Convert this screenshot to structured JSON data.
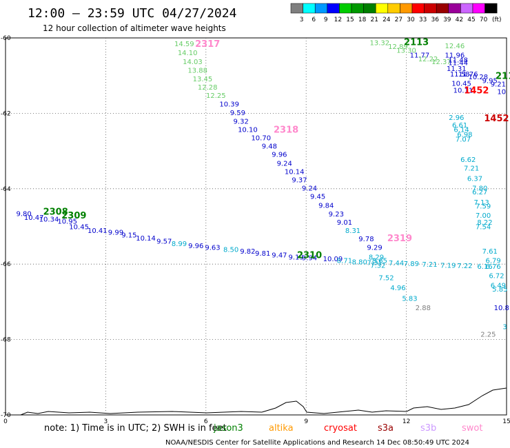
{
  "header": {
    "title": "12:00 – 23:59 UTC 04/27/2024",
    "subtitle": "12 hour collection of altimeter wave heights"
  },
  "legend": {
    "unit": "(ft)",
    "bins": [
      {
        "label": "3",
        "color": "#7f7f7f"
      },
      {
        "label": "6",
        "color": "#00ffff"
      },
      {
        "label": "9",
        "color": "#0099ff"
      },
      {
        "label": "12",
        "color": "#0000ff"
      },
      {
        "label": "15",
        "color": "#00cc00"
      },
      {
        "label": "18",
        "color": "#009900"
      },
      {
        "label": "21",
        "color": "#007f00"
      },
      {
        "label": "24",
        "color": "#ffff00"
      },
      {
        "label": "27",
        "color": "#ffcc00"
      },
      {
        "label": "30",
        "color": "#ff9900"
      },
      {
        "label": "33",
        "color": "#ff0000"
      },
      {
        "label": "36",
        "color": "#cc0000"
      },
      {
        "label": "39",
        "color": "#990000"
      },
      {
        "label": "42",
        "color": "#990099"
      },
      {
        "label": "45",
        "color": "#cc66ff"
      },
      {
        "label": "70",
        "color": "#ff00ff"
      },
      {
        "label": "",
        "color": "#000000"
      }
    ]
  },
  "footer": {
    "note": "note:  1) Time is in UTC; 2) SWH is in feet",
    "missions": [
      {
        "name": "jason3",
        "color": "#008000"
      },
      {
        "name": "altika",
        "color": "#ff9900"
      },
      {
        "name": "cryosat",
        "color": "#ff0000"
      },
      {
        "name": "s3a",
        "color": "#990000"
      },
      {
        "name": "s3b",
        "color": "#cc99ff"
      },
      {
        "name": "swot",
        "color": "#ff88cc"
      }
    ],
    "credit": "NOAA/NESDIS Center for Satellite Applications and Research    14 Dec 08:50:49 UTC 2024"
  },
  "chart_data": {
    "type": "scatter",
    "x_ticks": [
      "0",
      "3",
      "6",
      "9",
      "12",
      "15"
    ],
    "y_ticks": [
      "-60",
      "-62",
      "-64",
      "-66",
      "-68",
      "-70"
    ],
    "xlim": [
      0,
      15
    ],
    "ylim": [
      -70,
      -60
    ],
    "grid": "dotted",
    "points": [
      {
        "x": 5.35,
        "y": -60.15,
        "label": "14.59",
        "color": "#66cc66"
      },
      {
        "x": 5.45,
        "y": -60.38,
        "label": "14.10",
        "color": "#66cc66"
      },
      {
        "x": 5.6,
        "y": -60.62,
        "label": "14.03",
        "color": "#66cc66"
      },
      {
        "x": 5.75,
        "y": -60.85,
        "label": "13.88",
        "color": "#66cc66"
      },
      {
        "x": 5.9,
        "y": -61.08,
        "label": "13.45",
        "color": "#66cc66"
      },
      {
        "x": 6.05,
        "y": -61.3,
        "label": "12.28",
        "color": "#66cc66"
      },
      {
        "x": 6.3,
        "y": -61.52,
        "label": "12.25",
        "color": "#66cc66"
      },
      {
        "x": 6.7,
        "y": -61.75,
        "label": "10.39",
        "color": "#0000cc"
      },
      {
        "x": 6.95,
        "y": -61.97,
        "label": "9.59",
        "color": "#0000cc"
      },
      {
        "x": 7.05,
        "y": -62.2,
        "label": "9.32",
        "color": "#0000cc"
      },
      {
        "x": 7.25,
        "y": -62.42,
        "label": "10.10",
        "color": "#0000cc"
      },
      {
        "x": 7.65,
        "y": -62.64,
        "label": "10.70",
        "color": "#0000cc"
      },
      {
        "x": 7.9,
        "y": -62.86,
        "label": "9.48",
        "color": "#0000cc"
      },
      {
        "x": 8.2,
        "y": -63.08,
        "label": "9.96",
        "color": "#0000cc"
      },
      {
        "x": 8.35,
        "y": -63.32,
        "label": "9.24",
        "color": "#0000cc"
      },
      {
        "x": 8.65,
        "y": -63.54,
        "label": "10.14",
        "color": "#0000cc"
      },
      {
        "x": 8.8,
        "y": -63.76,
        "label": "9.37",
        "color": "#0000cc"
      },
      {
        "x": 9.1,
        "y": -63.98,
        "label": "9.24",
        "color": "#0000cc"
      },
      {
        "x": 9.35,
        "y": -64.2,
        "label": "9.45",
        "color": "#0000cc"
      },
      {
        "x": 9.6,
        "y": -64.43,
        "label": "9.84",
        "color": "#0000cc"
      },
      {
        "x": 9.9,
        "y": -64.66,
        "label": "9.23",
        "color": "#0000cc"
      },
      {
        "x": 10.15,
        "y": -64.88,
        "label": "9.01",
        "color": "#0000cc"
      },
      {
        "x": 10.4,
        "y": -65.1,
        "label": "8.31",
        "color": "#00aacc"
      },
      {
        "x": 10.8,
        "y": -65.32,
        "label": "9.78",
        "color": "#0000cc"
      },
      {
        "x": 11.05,
        "y": -65.55,
        "label": "9.29",
        "color": "#0000cc"
      },
      {
        "x": 11.1,
        "y": -65.8,
        "label": "8.29",
        "color": "#00aacc"
      },
      {
        "x": 11.2,
        "y": -65.9,
        "label": "8.65",
        "color": "#00aacc"
      },
      {
        "x": 11.15,
        "y": -66.02,
        "label": "7.32",
        "color": "#00aacc"
      },
      {
        "x": 11.4,
        "y": -66.35,
        "label": "7.52",
        "color": "#00aacc"
      },
      {
        "x": 11.75,
        "y": -66.62,
        "label": "4.96",
        "color": "#00aacc"
      },
      {
        "x": 12.1,
        "y": -66.9,
        "label": "5.83",
        "color": "#00aacc"
      },
      {
        "x": 12.5,
        "y": -67.15,
        "label": "2.88",
        "color": "#7f7f7f"
      },
      {
        "x": 0.55,
        "y": -64.65,
        "label": "9.80",
        "color": "#0000cc"
      },
      {
        "x": 0.85,
        "y": -64.75,
        "label": "10.47",
        "color": "#0000cc"
      },
      {
        "x": 1.3,
        "y": -64.8,
        "label": "10.34",
        "color": "#0000cc"
      },
      {
        "x": 1.85,
        "y": -64.85,
        "label": "10.95",
        "color": "#0000cc"
      },
      {
        "x": 2.2,
        "y": -65.0,
        "label": "10.45",
        "color": "#0000cc"
      },
      {
        "x": 2.75,
        "y": -65.1,
        "label": "10.41",
        "color": "#0000cc"
      },
      {
        "x": 3.3,
        "y": -65.15,
        "label": "9.99",
        "color": "#0000cc"
      },
      {
        "x": 3.7,
        "y": -65.22,
        "label": "9.15",
        "color": "#0000cc"
      },
      {
        "x": 4.2,
        "y": -65.3,
        "label": "10.14",
        "color": "#0000cc"
      },
      {
        "x": 4.75,
        "y": -65.38,
        "label": "9.57",
        "color": "#0000cc"
      },
      {
        "x": 5.2,
        "y": -65.45,
        "label": "8.99",
        "color": "#00aacc"
      },
      {
        "x": 5.7,
        "y": -65.5,
        "label": "9.96",
        "color": "#0000cc"
      },
      {
        "x": 6.2,
        "y": -65.55,
        "label": "9.63",
        "color": "#0000cc"
      },
      {
        "x": 6.75,
        "y": -65.6,
        "label": "8.50",
        "color": "#00aacc"
      },
      {
        "x": 7.25,
        "y": -65.65,
        "label": "9.82",
        "color": "#0000cc"
      },
      {
        "x": 7.7,
        "y": -65.7,
        "label": "9.81",
        "color": "#0000cc"
      },
      {
        "x": 8.2,
        "y": -65.75,
        "label": "9.47",
        "color": "#0000cc"
      },
      {
        "x": 8.7,
        "y": -65.8,
        "label": "9.19",
        "color": "#0000cc"
      },
      {
        "x": 9.1,
        "y": -65.82,
        "label": "9.94",
        "color": "#0000cc"
      },
      {
        "x": 9.8,
        "y": -65.85,
        "label": "10.09",
        "color": "#0000cc"
      },
      {
        "x": 10.15,
        "y": -65.9,
        "label": "8.71",
        "color": "#00aacc"
      },
      {
        "x": 10.6,
        "y": -65.93,
        "label": "8.80",
        "color": "#00aacc"
      },
      {
        "x": 11.05,
        "y": -65.95,
        "label": "7.31",
        "color": "#00aacc"
      },
      {
        "x": 11.7,
        "y": -65.96,
        "label": "7.44",
        "color": "#00aacc"
      },
      {
        "x": 12.15,
        "y": -65.98,
        "label": "7.89",
        "color": "#00aacc"
      },
      {
        "x": 12.7,
        "y": -66.0,
        "label": "7.21",
        "color": "#00aacc"
      },
      {
        "x": 13.25,
        "y": -66.02,
        "label": "7.19",
        "color": "#00aacc"
      },
      {
        "x": 13.75,
        "y": -66.03,
        "label": "7.22",
        "color": "#00aacc"
      },
      {
        "x": 14.35,
        "y": -66.05,
        "label": "6.16",
        "color": "#00aacc"
      },
      {
        "x": 13.5,
        "y": -62.1,
        "label": "2.96",
        "color": "#00aacc"
      },
      {
        "x": 13.6,
        "y": -62.3,
        "label": "6.61",
        "color": "#00aacc"
      },
      {
        "x": 13.65,
        "y": -62.42,
        "label": "6.14",
        "color": "#00aacc"
      },
      {
        "x": 13.75,
        "y": -62.55,
        "label": "6.98",
        "color": "#00aacc"
      },
      {
        "x": 13.7,
        "y": -62.68,
        "label": "7.07",
        "color": "#00aacc"
      },
      {
        "x": 13.85,
        "y": -63.22,
        "label": "6.62",
        "color": "#00aacc"
      },
      {
        "x": 13.95,
        "y": -63.45,
        "label": "7.21",
        "color": "#00aacc"
      },
      {
        "x": 14.05,
        "y": -63.72,
        "label": "6.37",
        "color": "#00aacc"
      },
      {
        "x": 14.2,
        "y": -63.98,
        "label": "7.80",
        "color": "#00aacc"
      },
      {
        "x": 14.2,
        "y": -64.08,
        "label": "6.27",
        "color": "#00aacc"
      },
      {
        "x": 14.25,
        "y": -64.35,
        "label": "7.13",
        "color": "#00aacc"
      },
      {
        "x": 14.3,
        "y": -64.45,
        "label": "7.59",
        "color": "#00aacc"
      },
      {
        "x": 14.3,
        "y": -64.7,
        "label": "7.00",
        "color": "#00aacc"
      },
      {
        "x": 14.35,
        "y": -64.88,
        "label": "8.22",
        "color": "#00aacc"
      },
      {
        "x": 14.3,
        "y": -65.0,
        "label": "7.54",
        "color": "#00aacc"
      },
      {
        "x": 14.5,
        "y": -65.65,
        "label": "7.61",
        "color": "#00aacc"
      },
      {
        "x": 14.6,
        "y": -65.9,
        "label": "6.79",
        "color": "#00aacc"
      },
      {
        "x": 14.6,
        "y": -66.05,
        "label": "6.76",
        "color": "#00aacc"
      },
      {
        "x": 14.7,
        "y": -66.3,
        "label": "6.72",
        "color": "#00aacc"
      },
      {
        "x": 14.75,
        "y": -66.55,
        "label": "6.49",
        "color": "#00aacc"
      },
      {
        "x": 14.8,
        "y": -66.65,
        "label": "5.85",
        "color": "#00aacc"
      },
      {
        "x": 14.85,
        "y": -67.15,
        "label": "10.8",
        "color": "#0000cc"
      },
      {
        "x": 14.95,
        "y": -67.65,
        "label": "3",
        "color": "#00aacc"
      },
      {
        "x": 14.45,
        "y": -67.85,
        "label": "2.25",
        "color": "#7f7f7f"
      },
      {
        "x": 11.2,
        "y": -60.12,
        "label": "13.32",
        "color": "#66cc66"
      },
      {
        "x": 11.75,
        "y": -60.22,
        "label": "12.89",
        "color": "#66cc66"
      },
      {
        "x": 12.0,
        "y": -60.32,
        "label": "13.30",
        "color": "#66cc66"
      },
      {
        "x": 12.4,
        "y": -60.45,
        "label": "11.77",
        "color": "#0000cc"
      },
      {
        "x": 13.45,
        "y": -60.2,
        "label": "12.46",
        "color": "#66cc66"
      },
      {
        "x": 12.65,
        "y": -60.55,
        "label": "12.22",
        "color": "#66cc66"
      },
      {
        "x": 13.05,
        "y": -60.62,
        "label": "12.37",
        "color": "#66cc66"
      },
      {
        "x": 13.45,
        "y": -60.45,
        "label": "11.96",
        "color": "#0000cc"
      },
      {
        "x": 13.55,
        "y": -60.58,
        "label": "11.48",
        "color": "#0000cc"
      },
      {
        "x": 13.55,
        "y": -60.65,
        "label": "11.44",
        "color": "#0000cc"
      },
      {
        "x": 13.5,
        "y": -60.8,
        "label": "11.31",
        "color": "#0000cc"
      },
      {
        "x": 13.6,
        "y": -60.95,
        "label": "11.58",
        "color": "#0000cc"
      },
      {
        "x": 13.85,
        "y": -60.95,
        "label": "11.76",
        "color": "#0000cc"
      },
      {
        "x": 14.15,
        "y": -61.02,
        "label": "10.28",
        "color": "#0000cc"
      },
      {
        "x": 14.5,
        "y": -61.12,
        "label": "9.95",
        "color": "#0000cc"
      },
      {
        "x": 14.75,
        "y": -61.22,
        "label": "9.21",
        "color": "#0000cc"
      },
      {
        "x": 13.65,
        "y": -61.2,
        "label": "10.45",
        "color": "#0000cc"
      },
      {
        "x": 13.7,
        "y": -61.38,
        "label": "10.11",
        "color": "#0000cc"
      },
      {
        "x": 14.85,
        "y": -61.42,
        "label": "10",
        "color": "#0000cc"
      }
    ],
    "passes": [
      {
        "x": 6.05,
        "y": -60.15,
        "label": "2317",
        "color": "#ff88cc"
      },
      {
        "x": 8.4,
        "y": -62.42,
        "label": "2318",
        "color": "#ff88cc"
      },
      {
        "x": 11.8,
        "y": -65.3,
        "label": "2319",
        "color": "#ff88cc"
      },
      {
        "x": 12.3,
        "y": -60.1,
        "label": "2113",
        "color": "#008000"
      },
      {
        "x": 14.95,
        "y": -61.0,
        "label": "211",
        "color": "#008000"
      },
      {
        "x": 14.1,
        "y": -61.38,
        "label": "1452",
        "color": "#ff0000"
      },
      {
        "x": 14.7,
        "y": -62.12,
        "label": "1452",
        "color": "#cc0000"
      },
      {
        "x": 1.5,
        "y": -64.6,
        "label": "2308",
        "color": "#008000"
      },
      {
        "x": 2.05,
        "y": -64.7,
        "label": "2309",
        "color": "#008000"
      },
      {
        "x": 9.1,
        "y": -65.75,
        "label": "2310",
        "color": "#008000"
      }
    ]
  }
}
